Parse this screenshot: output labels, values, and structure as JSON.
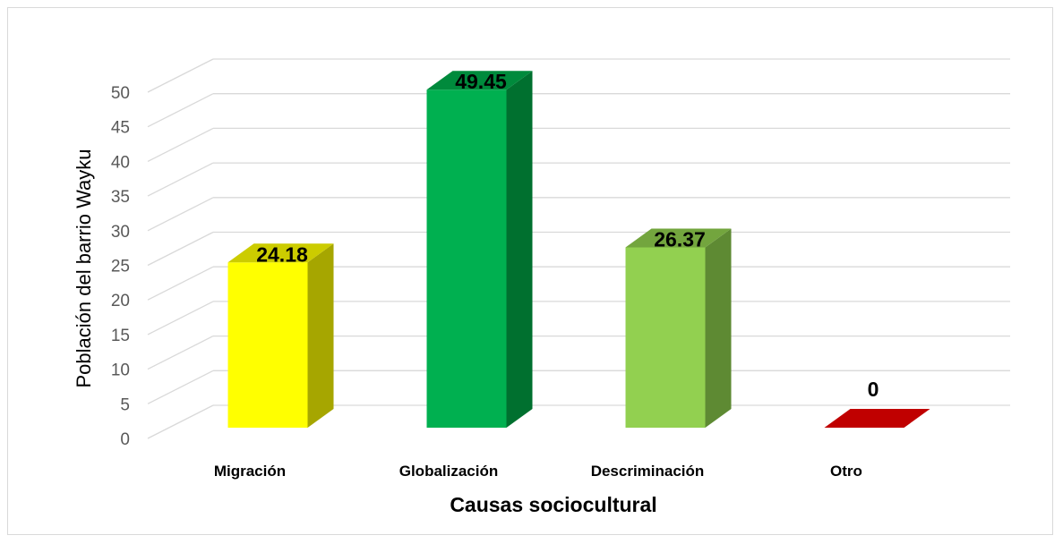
{
  "chart_data": {
    "type": "bar",
    "three_d": true,
    "categories": [
      "Migración",
      "Globalización",
      "Descriminación",
      "Otro"
    ],
    "values": [
      24.18,
      49.45,
      26.37,
      0
    ],
    "data_labels": [
      "24.18",
      "49.45",
      "26.37",
      "0"
    ],
    "colors": {
      "front": [
        "#ffff00",
        "#00b050",
        "#92d050",
        "#c00000"
      ],
      "side": [
        "#a6a600",
        "#00702f",
        "#5e8a33",
        "#8a0000"
      ],
      "top": [
        "#cccc00",
        "#008a3c",
        "#73a53e",
        "#c00000"
      ],
      "gridline": "#d9d9d9",
      "frame": "#d9d9d9"
    },
    "title": "",
    "xlabel": "Causas sociocultural",
    "ylabel": "Población del barrio Wayku",
    "ylim": [
      0,
      50
    ],
    "yticks": [
      0,
      5,
      10,
      15,
      20,
      25,
      30,
      35,
      40,
      45,
      50
    ],
    "grid": true,
    "legend": "none"
  }
}
